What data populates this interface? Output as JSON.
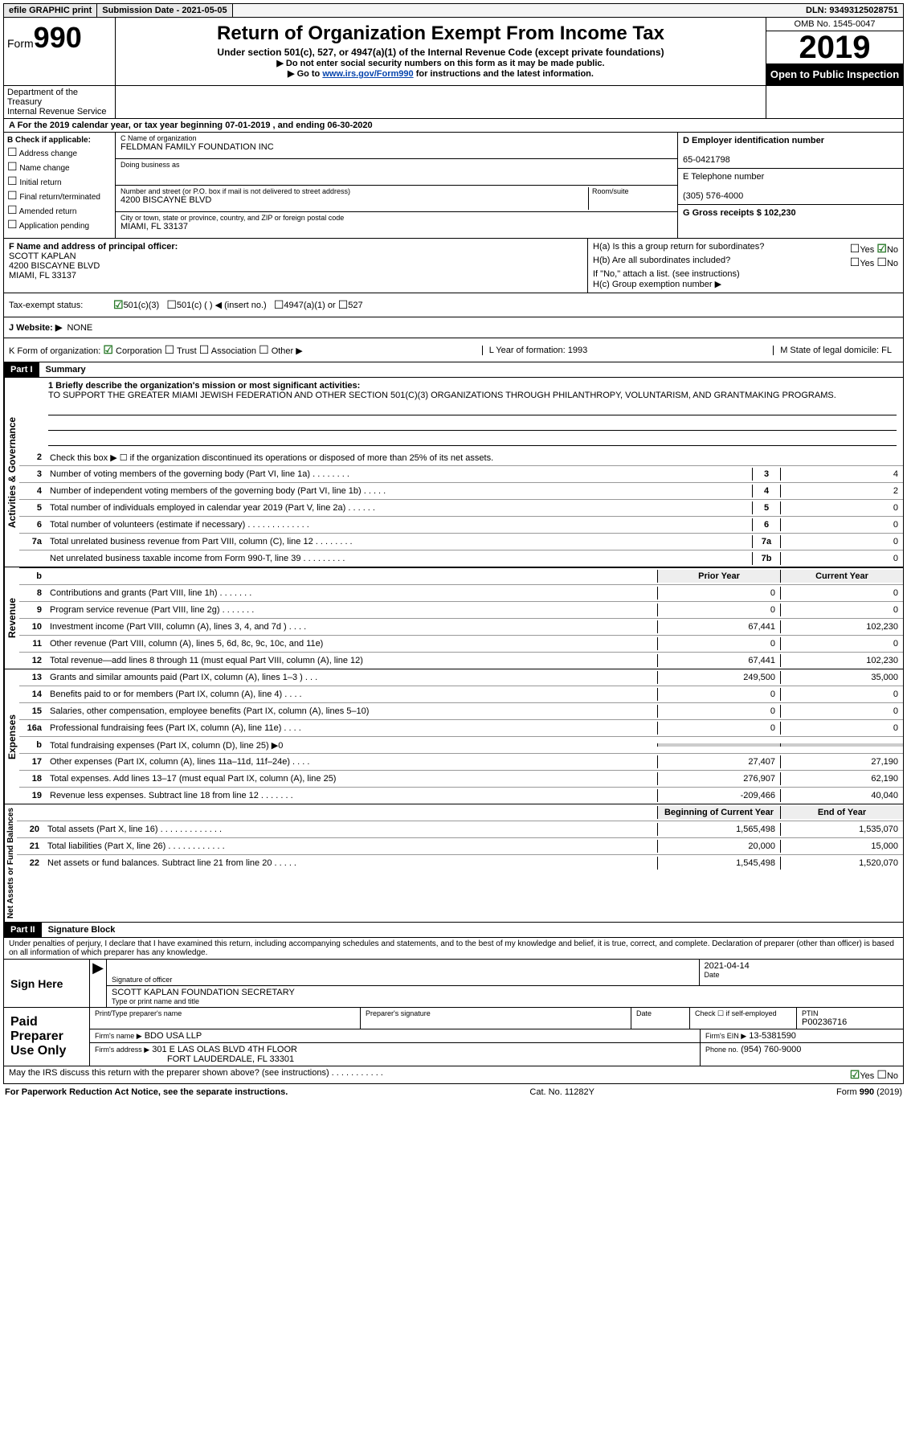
{
  "topbar": {
    "efile": "efile GRAPHIC print",
    "sub_label": "Submission Date - 2021-05-05",
    "dln": "DLN: 93493125028751"
  },
  "header": {
    "form_word": "Form",
    "form_num": "990",
    "title": "Return of Organization Exempt From Income Tax",
    "subtitle": "Under section 501(c), 527, or 4947(a)(1) of the Internal Revenue Code (except private foundations)",
    "note1": "▶ Do not enter social security numbers on this form as it may be made public.",
    "note2_pre": "▶ Go to ",
    "note2_link": "www.irs.gov/Form990",
    "note2_post": " for instructions and the latest information.",
    "dept": "Department of the Treasury",
    "irs": "Internal Revenue Service",
    "omb": "OMB No. 1545-0047",
    "year": "2019",
    "open": "Open to Public Inspection"
  },
  "row_a": "A For the 2019 calendar year, or tax year beginning 07-01-2019   , and ending 06-30-2020",
  "col_b": {
    "label": "B Check if applicable:",
    "opts": [
      "Address change",
      "Name change",
      "Initial return",
      "Final return/terminated",
      "Amended return",
      "Application pending"
    ]
  },
  "col_c": {
    "name_label": "C Name of organization",
    "name": "FELDMAN FAMILY FOUNDATION INC",
    "dba_label": "Doing business as",
    "addr_label": "Number and street (or P.O. box if mail is not delivered to street address)",
    "room_label": "Room/suite",
    "addr": "4200 BISCAYNE BLVD",
    "city_label": "City or town, state or province, country, and ZIP or foreign postal code",
    "city": "MIAMI, FL  33137"
  },
  "col_d": {
    "ein_label": "D Employer identification number",
    "ein": "65-0421798",
    "tel_label": "E Telephone number",
    "tel": "(305) 576-4000",
    "gross_label": "G Gross receipts $ 102,230"
  },
  "col_f": {
    "label": "F  Name and address of principal officer:",
    "name": "SCOTT KAPLAN",
    "addr1": "4200 BISCAYNE BLVD",
    "addr2": "MIAMI, FL  33137"
  },
  "col_h": {
    "ha": "H(a)  Is this a group return for subordinates?",
    "hb": "H(b)  Are all subordinates included?",
    "hb_note": "If \"No,\" attach a list. (see instructions)",
    "hc": "H(c)  Group exemption number ▶",
    "yes": "Yes",
    "no": "No"
  },
  "row_i": {
    "label": "Tax-exempt status:",
    "opt1": "501(c)(3)",
    "opt2": "501(c) (   ) ◀ (insert no.)",
    "opt3": "4947(a)(1) or",
    "opt4": "527"
  },
  "row_j": {
    "label": "J   Website: ▶",
    "val": "NONE"
  },
  "row_k": {
    "label": "K Form of organization:",
    "opts": [
      "Corporation",
      "Trust",
      "Association",
      "Other ▶"
    ],
    "l_label": "L Year of formation: 1993",
    "m_label": "M State of legal domicile: FL"
  },
  "part1": {
    "num": "Part I",
    "title": "Summary",
    "mission_label": "1   Briefly describe the organization's mission or most significant activities:",
    "mission": "TO SUPPORT THE GREATER MIAMI JEWISH FEDERATION AND OTHER SECTION 501(C)(3) ORGANIZATIONS THROUGH PHILANTHROPY, VOLUNTARISM, AND GRANTMAKING PROGRAMS.",
    "line2": "Check this box ▶ ☐  if the organization discontinued its operations or disposed of more than 25% of its net assets."
  },
  "sections": {
    "governance": "Activities & Governance",
    "revenue": "Revenue",
    "expenses": "Expenses",
    "net": "Net Assets or Fund Balances"
  },
  "col_headers": {
    "prior": "Prior Year",
    "current": "Current Year",
    "begin": "Beginning of Current Year",
    "end": "End of Year"
  },
  "lines_gov": [
    {
      "n": "3",
      "t": "Number of voting members of the governing body (Part VI, line 1a)   .    .    .    .    .    .    .    .",
      "box": "3",
      "v": "4"
    },
    {
      "n": "4",
      "t": "Number of independent voting members of the governing body (Part VI, line 1b)  .    .    .    .    .",
      "box": "4",
      "v": "2"
    },
    {
      "n": "5",
      "t": "Total number of individuals employed in calendar year 2019 (Part V, line 2a)  .    .    .    .    .    .",
      "box": "5",
      "v": "0"
    },
    {
      "n": "6",
      "t": "Total number of volunteers (estimate if necessary)    .    .    .    .    .    .    .    .    .    .    .    .    .",
      "box": "6",
      "v": "0"
    },
    {
      "n": "7a",
      "t": "Total unrelated business revenue from Part VIII, column (C), line 12   .    .    .    .    .    .    .    .",
      "box": "7a",
      "v": "0"
    },
    {
      "n": "",
      "t": "Net unrelated business taxable income from Form 990-T, line 39   .    .    .    .    .    .    .    .    .",
      "box": "7b",
      "v": "0"
    }
  ],
  "lines_rev": [
    {
      "n": "8",
      "t": "Contributions and grants (Part VIII, line 1h)   .    .    .    .    .    .    .",
      "p": "0",
      "c": "0"
    },
    {
      "n": "9",
      "t": "Program service revenue (Part VIII, line 2g)   .    .    .    .    .    .    .",
      "p": "0",
      "c": "0"
    },
    {
      "n": "10",
      "t": "Investment income (Part VIII, column (A), lines 3, 4, and 7d )    .    .    .    .",
      "p": "67,441",
      "c": "102,230"
    },
    {
      "n": "11",
      "t": "Other revenue (Part VIII, column (A), lines 5, 6d, 8c, 9c, 10c, and 11e)",
      "p": "0",
      "c": "0"
    },
    {
      "n": "12",
      "t": "Total revenue—add lines 8 through 11 (must equal Part VIII, column (A), line 12)",
      "p": "67,441",
      "c": "102,230"
    }
  ],
  "lines_exp": [
    {
      "n": "13",
      "t": "Grants and similar amounts paid (Part IX, column (A), lines 1–3 )   .    .    .",
      "p": "249,500",
      "c": "35,000"
    },
    {
      "n": "14",
      "t": "Benefits paid to or for members (Part IX, column (A), line 4)   .    .    .    .",
      "p": "0",
      "c": "0"
    },
    {
      "n": "15",
      "t": "Salaries, other compensation, employee benefits (Part IX, column (A), lines 5–10)",
      "p": "0",
      "c": "0"
    },
    {
      "n": "16a",
      "t": "Professional fundraising fees (Part IX, column (A), line 11e)   .    .    .    .",
      "p": "0",
      "c": "0"
    },
    {
      "n": "b",
      "t": "Total fundraising expenses (Part IX, column (D), line 25) ▶0",
      "p": "",
      "c": "",
      "shade": true
    },
    {
      "n": "17",
      "t": "Other expenses (Part IX, column (A), lines 11a–11d, 11f–24e)   .    .    .    .",
      "p": "27,407",
      "c": "27,190"
    },
    {
      "n": "18",
      "t": "Total expenses. Add lines 13–17 (must equal Part IX, column (A), line 25)",
      "p": "276,907",
      "c": "62,190"
    },
    {
      "n": "19",
      "t": "Revenue less expenses. Subtract line 18 from line 12   .    .    .    .    .    .    .",
      "p": "-209,466",
      "c": "40,040"
    }
  ],
  "lines_net": [
    {
      "n": "20",
      "t": "Total assets (Part X, line 16)   .    .    .    .    .    .    .    .    .    .    .    .    .",
      "p": "1,565,498",
      "c": "1,535,070"
    },
    {
      "n": "21",
      "t": "Total liabilities (Part X, line 26)   .    .    .    .    .    .    .    .    .    .    .    .",
      "p": "20,000",
      "c": "15,000"
    },
    {
      "n": "22",
      "t": "Net assets or fund balances. Subtract line 21 from line 20   .    .    .    .    .",
      "p": "1,545,498",
      "c": "1,520,070"
    }
  ],
  "part2": {
    "num": "Part II",
    "title": "Signature Block",
    "decl": "Under penalties of perjury, I declare that I have examined this return, including accompanying schedules and statements, and to the best of my knowledge and belief, it is true, correct, and complete. Declaration of preparer (other than officer) is based on all information of which preparer has any knowledge."
  },
  "sign": {
    "label": "Sign Here",
    "sig_of": "Signature of officer",
    "date_label": "Date",
    "date": "2021-04-14",
    "name": "SCOTT KAPLAN  FOUNDATION SECRETARY",
    "type_label": "Type or print name and title"
  },
  "preparer": {
    "label": "Paid Preparer Use Only",
    "name_label": "Print/Type preparer's name",
    "sig_label": "Preparer's signature",
    "date_label": "Date",
    "check_label": "Check ☐ if self-employed",
    "ptin_label": "PTIN",
    "ptin": "P00236716",
    "firm_label": "Firm's name    ▶",
    "firm": "BDO USA LLP",
    "firm_ein_label": "Firm's EIN ▶",
    "firm_ein": "13-5381590",
    "addr_label": "Firm's address ▶",
    "addr1": "301 E LAS OLAS BLVD 4TH FLOOR",
    "addr2": "FORT LAUDERDALE, FL  33301",
    "phone_label": "Phone no.",
    "phone": "(954) 760-9000",
    "discuss": "May the IRS discuss this return with the preparer shown above? (see instructions)   .    .    .    .    .    .    .    .    .    .    ."
  },
  "footer": {
    "left": "For Paperwork Reduction Act Notice, see the separate instructions.",
    "mid": "Cat. No. 11282Y",
    "right": "Form 990 (2019)"
  }
}
